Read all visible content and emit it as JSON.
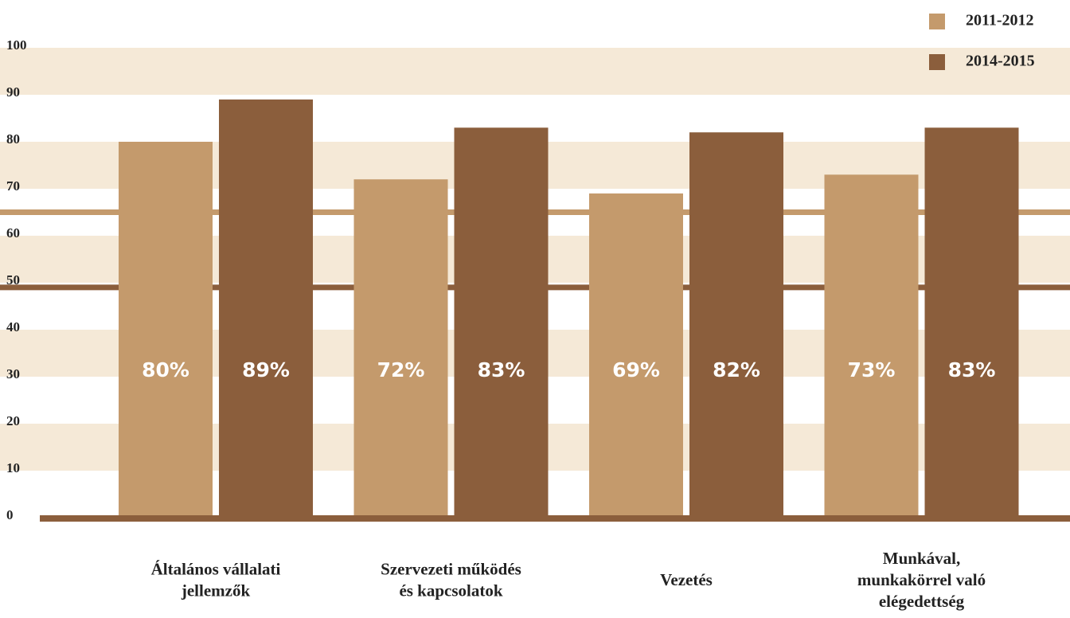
{
  "chart_data": {
    "type": "bar",
    "categories": [
      "Általános vállalati\njellemzők",
      "Szervezeti működés\nés kapcsolatok",
      "Vezetés",
      "Munkával,\nmunkakörrel való\nelégedettség"
    ],
    "series": [
      {
        "name": "2011-2012",
        "color": "#c49a6c",
        "values": [
          80,
          72,
          69,
          73
        ],
        "value_labels": [
          "80%",
          "72%",
          "69%",
          "73%"
        ]
      },
      {
        "name": "2014-2015",
        "color": "#8b5e3c",
        "values": [
          89,
          83,
          82,
          83
        ],
        "value_labels": [
          "89%",
          "83%",
          "82%",
          "83%"
        ]
      }
    ],
    "reference_lines": [
      {
        "value": 65,
        "color": "#c49a6c"
      },
      {
        "value": 49,
        "color": "#8b5e3c"
      }
    ],
    "ylim": [
      0,
      100
    ],
    "yticks": [
      0,
      10,
      20,
      30,
      40,
      50,
      60,
      70,
      80,
      90,
      100
    ],
    "band_color": "#f5e9d7",
    "legend": "upper right"
  }
}
